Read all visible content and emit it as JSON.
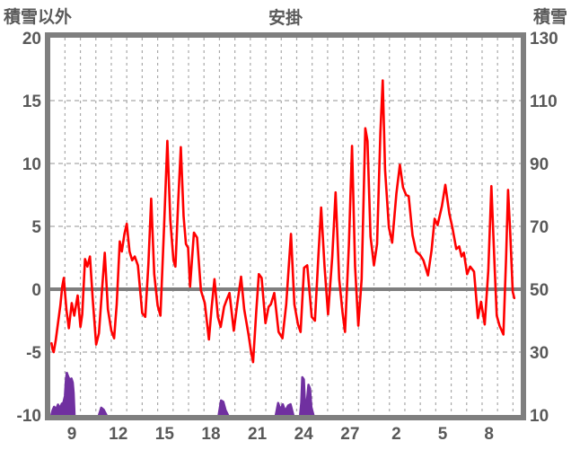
{
  "header": {
    "left_axis_title": "積雪以外",
    "chart_title": "安掛",
    "right_axis_title": "積雪"
  },
  "colors": {
    "temperature_line": "#ff0000",
    "snow_area": "#7030a0",
    "frame": "#7f7f7f",
    "zero_line": "#7f7f7f",
    "gridline": "#a9a9a9",
    "tick_text": "#595959",
    "background": "#ffffff"
  },
  "chart_data": {
    "type": "line",
    "title": "安掛",
    "legend_position": "none",
    "grid": true,
    "x_axis": {
      "unit": "day of month (Feb 8 - Mar 10)",
      "day_start": 8.05,
      "day_end": 38.5,
      "gridline_day_min": 9,
      "gridline_day_max": 38,
      "tick_days": [
        9,
        12,
        15,
        18,
        21,
        24,
        27,
        30,
        33,
        36
      ],
      "tick_labels": [
        "9",
        "12",
        "15",
        "18",
        "21",
        "24",
        "27",
        "2",
        "5",
        "8"
      ]
    },
    "y_left": {
      "title": "積雪以外",
      "range": [
        -10,
        20
      ],
      "ticks": [
        20,
        15,
        10,
        5,
        0,
        -5,
        -10
      ],
      "dashed_gridline_values": [
        15,
        10,
        5,
        -5
      ],
      "zero_line_value": 0
    },
    "y_right": {
      "title": "積雪",
      "range": [
        10,
        130
      ],
      "ticks": [
        130,
        110,
        90,
        70,
        50,
        30,
        10
      ]
    },
    "series": [
      {
        "name": "temperature-non-snow",
        "axis": "left",
        "style": "line",
        "color": "#ff0000",
        "points": [
          [
            8.13,
            -4.3
          ],
          [
            8.2,
            -4.8
          ],
          [
            8.27,
            -5.0
          ],
          [
            8.4,
            -4.1
          ],
          [
            8.55,
            -2.7
          ],
          [
            8.7,
            -1.3
          ],
          [
            8.82,
            0.2
          ],
          [
            8.93,
            0.9
          ],
          [
            9.0,
            -0.2
          ],
          [
            9.1,
            -1.7
          ],
          [
            9.25,
            -3.1
          ],
          [
            9.44,
            -1.1
          ],
          [
            9.6,
            -2.1
          ],
          [
            9.82,
            -0.5
          ],
          [
            10.0,
            -3.0
          ],
          [
            10.12,
            -2.0
          ],
          [
            10.3,
            2.4
          ],
          [
            10.45,
            1.8
          ],
          [
            10.62,
            2.6
          ],
          [
            10.8,
            -0.8
          ],
          [
            11.02,
            -4.4
          ],
          [
            11.2,
            -3.5
          ],
          [
            11.42,
            0.3
          ],
          [
            11.58,
            2.9
          ],
          [
            11.78,
            -1.6
          ],
          [
            12.0,
            -3.3
          ],
          [
            12.18,
            -3.9
          ],
          [
            12.35,
            -1.2
          ],
          [
            12.55,
            3.8
          ],
          [
            12.68,
            3.0
          ],
          [
            12.85,
            4.4
          ],
          [
            13.0,
            5.2
          ],
          [
            13.18,
            3.0
          ],
          [
            13.35,
            2.3
          ],
          [
            13.52,
            2.6
          ],
          [
            13.72,
            1.9
          ],
          [
            14.0,
            -1.9
          ],
          [
            14.2,
            -2.2
          ],
          [
            14.4,
            2.0
          ],
          [
            14.58,
            7.2
          ],
          [
            14.78,
            1.2
          ],
          [
            15.0,
            -1.3
          ],
          [
            15.18,
            -2.1
          ],
          [
            15.4,
            4.5
          ],
          [
            15.63,
            11.8
          ],
          [
            15.82,
            5.5
          ],
          [
            16.02,
            2.3
          ],
          [
            16.15,
            1.8
          ],
          [
            16.33,
            7.0
          ],
          [
            16.5,
            11.3
          ],
          [
            16.68,
            5.8
          ],
          [
            16.83,
            3.6
          ],
          [
            16.97,
            3.3
          ],
          [
            17.1,
            0.2
          ],
          [
            17.35,
            4.5
          ],
          [
            17.55,
            4.1
          ],
          [
            17.8,
            -0.1
          ],
          [
            18.05,
            -1.1
          ],
          [
            18.32,
            -4.0
          ],
          [
            18.5,
            -1.4
          ],
          [
            18.68,
            0.8
          ],
          [
            18.9,
            -2.2
          ],
          [
            19.08,
            -3.0
          ],
          [
            19.3,
            -1.4
          ],
          [
            19.48,
            -0.8
          ],
          [
            19.65,
            -0.3
          ],
          [
            19.93,
            -3.3
          ],
          [
            20.15,
            -1.2
          ],
          [
            20.4,
            1.0
          ],
          [
            20.6,
            -1.6
          ],
          [
            20.88,
            -3.6
          ],
          [
            21.05,
            -5.0
          ],
          [
            21.18,
            -5.8
          ],
          [
            21.38,
            -1.8
          ],
          [
            21.55,
            1.2
          ],
          [
            21.73,
            0.9
          ],
          [
            21.98,
            -2.7
          ],
          [
            22.18,
            -1.4
          ],
          [
            22.33,
            -1.2
          ],
          [
            22.55,
            -0.3
          ],
          [
            22.83,
            -3.4
          ],
          [
            23.08,
            -3.9
          ],
          [
            23.32,
            -1.2
          ],
          [
            23.63,
            4.4
          ],
          [
            23.85,
            -1.2
          ],
          [
            24.08,
            -2.8
          ],
          [
            24.25,
            -3.4
          ],
          [
            24.48,
            1.7
          ],
          [
            24.68,
            1.9
          ],
          [
            24.97,
            -2.2
          ],
          [
            25.18,
            -2.5
          ],
          [
            25.4,
            2.6
          ],
          [
            25.58,
            6.5
          ],
          [
            25.8,
            1.8
          ],
          [
            26.03,
            -2.0
          ],
          [
            26.3,
            2.6
          ],
          [
            26.52,
            7.7
          ],
          [
            26.75,
            0.8
          ],
          [
            26.97,
            -1.9
          ],
          [
            27.13,
            -3.4
          ],
          [
            27.38,
            3.5
          ],
          [
            27.58,
            11.4
          ],
          [
            27.78,
            1.8
          ],
          [
            27.99,
            -2.9
          ],
          [
            28.2,
            0.8
          ],
          [
            28.44,
            12.8
          ],
          [
            28.58,
            11.8
          ],
          [
            28.78,
            4.2
          ],
          [
            29.0,
            1.9
          ],
          [
            29.2,
            3.6
          ],
          [
            29.42,
            12.5
          ],
          [
            29.57,
            16.6
          ],
          [
            29.72,
            9.5
          ],
          [
            29.97,
            4.9
          ],
          [
            30.18,
            3.7
          ],
          [
            30.45,
            7.6
          ],
          [
            30.68,
            9.9
          ],
          [
            30.88,
            8.1
          ],
          [
            31.08,
            7.5
          ],
          [
            31.25,
            7.4
          ],
          [
            31.5,
            4.3
          ],
          [
            31.73,
            3.0
          ],
          [
            32.0,
            2.7
          ],
          [
            32.2,
            2.3
          ],
          [
            32.5,
            1.1
          ],
          [
            32.73,
            3.1
          ],
          [
            32.93,
            5.6
          ],
          [
            33.12,
            5.1
          ],
          [
            33.4,
            6.6
          ],
          [
            33.62,
            8.3
          ],
          [
            33.88,
            6.0
          ],
          [
            34.08,
            4.9
          ],
          [
            34.33,
            3.2
          ],
          [
            34.52,
            3.4
          ],
          [
            34.67,
            2.6
          ],
          [
            34.82,
            2.9
          ],
          [
            35.03,
            1.2
          ],
          [
            35.23,
            1.8
          ],
          [
            35.48,
            1.4
          ],
          [
            35.73,
            -2.3
          ],
          [
            35.93,
            -1.0
          ],
          [
            36.17,
            -2.8
          ],
          [
            36.4,
            1.5
          ],
          [
            36.6,
            8.2
          ],
          [
            36.82,
            1.5
          ],
          [
            36.95,
            -2.1
          ],
          [
            37.13,
            -2.9
          ],
          [
            37.38,
            -3.6
          ],
          [
            37.55,
            2.5
          ],
          [
            37.68,
            7.9
          ],
          [
            37.82,
            4.5
          ],
          [
            37.98,
            -0.2
          ],
          [
            38.08,
            -0.7
          ]
        ]
      },
      {
        "name": "snow-depth",
        "axis": "right",
        "style": "area",
        "color": "#7030a0",
        "baseline": 10,
        "clusters": [
          [
            [
              8.13,
              10.2
            ],
            [
              8.2,
              11.5
            ],
            [
              8.3,
              12.6
            ],
            [
              8.42,
              11.8
            ],
            [
              8.55,
              13.3
            ],
            [
              8.68,
              12.1
            ],
            [
              8.8,
              13.6
            ],
            [
              8.9,
              13.9
            ],
            [
              9.0,
              16.0
            ],
            [
              9.06,
              21.0
            ],
            [
              9.12,
              23.4
            ],
            [
              9.2,
              22.3
            ],
            [
              9.3,
              21.2
            ],
            [
              9.42,
              21.6
            ],
            [
              9.5,
              20.3
            ],
            [
              9.56,
              17.0
            ],
            [
              9.62,
              10.0
            ]
          ],
          [
            [
              11.2,
              10.0
            ],
            [
              11.35,
              12.3
            ],
            [
              11.5,
              11.7
            ],
            [
              11.68,
              10.0
            ]
          ],
          [
            [
              18.95,
              10.0
            ],
            [
              19.1,
              14.6
            ],
            [
              19.25,
              14.2
            ],
            [
              19.4,
              11.5
            ],
            [
              19.55,
              10.0
            ]
          ],
          [
            [
              22.65,
              10.0
            ],
            [
              22.8,
              13.8
            ],
            [
              22.95,
              11.6
            ],
            [
              23.1,
              13.4
            ],
            [
              23.25,
              11.2
            ],
            [
              23.45,
              13.0
            ],
            [
              23.6,
              13.4
            ],
            [
              23.78,
              10.0
            ]
          ],
          [
            [
              24.22,
              10.0
            ],
            [
              24.3,
              14.0
            ],
            [
              24.36,
              22.0
            ],
            [
              24.46,
              21.3
            ],
            [
              24.55,
              12.5
            ],
            [
              24.65,
              14.0
            ],
            [
              24.76,
              19.6
            ],
            [
              24.86,
              18.4
            ],
            [
              24.95,
              12.5
            ],
            [
              25.08,
              10.0
            ]
          ]
        ]
      }
    ]
  }
}
